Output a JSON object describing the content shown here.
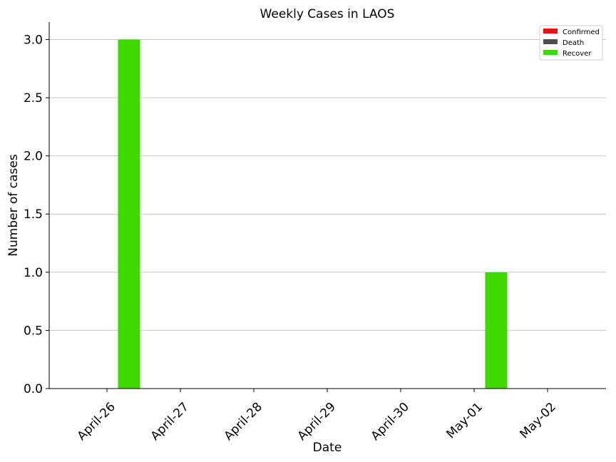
{
  "chart_data": {
    "type": "bar",
    "title": "Weekly Cases in LAOS",
    "xlabel": "Date",
    "ylabel": "Number of cases",
    "categories": [
      "April-26",
      "April-27",
      "April-28",
      "April-29",
      "April-30",
      "May-01",
      "May-02"
    ],
    "series": [
      {
        "name": "Confirmed",
        "color": "#ee0f0f",
        "values": [
          0,
          0,
          0,
          0,
          0,
          0,
          0
        ]
      },
      {
        "name": "Death",
        "color": "#4d4d4d",
        "values": [
          0,
          0,
          0,
          0,
          0,
          0,
          0
        ]
      },
      {
        "name": "Recover",
        "color": "#3ed800",
        "values": [
          3,
          0,
          0,
          0,
          0,
          1,
          0
        ]
      }
    ],
    "ylim": [
      0,
      3.15
    ],
    "yticks": [
      "0.0",
      "0.5",
      "1.0",
      "1.5",
      "2.0",
      "2.5",
      "3.0"
    ],
    "grid": "horizontal",
    "legend_position": "top-right"
  }
}
